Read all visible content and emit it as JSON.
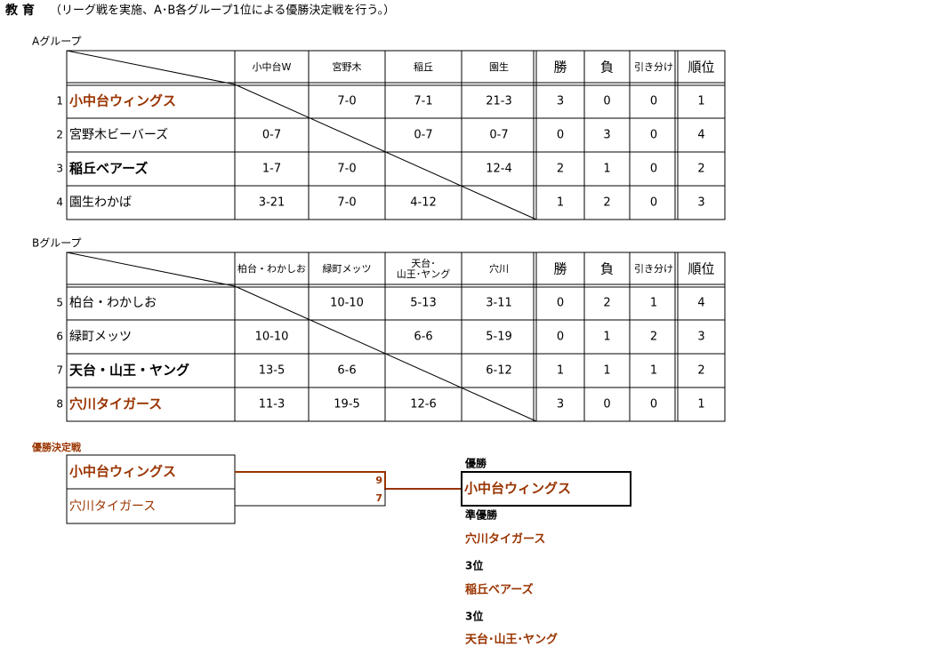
{
  "header": {
    "title": "教 育",
    "note": "（リーグ戦を実施、A･B各グループ1位による優勝決定戦を行う。）"
  },
  "groups": [
    {
      "label": "Aグループ",
      "columns": [
        [
          "小中台W"
        ],
        [
          "宮野木"
        ],
        [
          "稲丘"
        ],
        [
          "園生"
        ],
        [
          "勝"
        ],
        [
          "負"
        ],
        [
          "引き分け"
        ],
        [
          "順位"
        ]
      ],
      "rows": [
        {
          "no": 1,
          "team": "小中台ウィングス",
          "bold": true,
          "color": "#993300",
          "cells": [
            null,
            "7-0",
            "7-1",
            "21-3",
            3,
            0,
            0,
            1
          ]
        },
        {
          "no": 2,
          "team": "宮野木ビーバーズ",
          "bold": false,
          "color": "#000000",
          "cells": [
            "0-7",
            null,
            "0-7",
            "0-7",
            0,
            3,
            0,
            4
          ]
        },
        {
          "no": 3,
          "team": "稲丘ベアーズ",
          "bold": true,
          "color": "#000000",
          "cells": [
            "1-7",
            "7-0",
            null,
            "12-4",
            2,
            1,
            0,
            2
          ]
        },
        {
          "no": 4,
          "team": "園生わかば",
          "bold": false,
          "color": "#000000",
          "cells": [
            "3-21",
            "7-0",
            "4-12",
            null,
            1,
            2,
            0,
            3
          ]
        }
      ]
    },
    {
      "label": "Bグループ",
      "columns": [
        [
          "柏台・わかしお"
        ],
        [
          "緑町メッツ"
        ],
        [
          "天台･",
          "山王･ヤング"
        ],
        [
          "穴川"
        ],
        [
          "勝"
        ],
        [
          "負"
        ],
        [
          "引き分け"
        ],
        [
          "順位"
        ]
      ],
      "rows": [
        {
          "no": 5,
          "team": "柏台・わかしお",
          "bold": false,
          "color": "#000000",
          "cells": [
            null,
            "10-10",
            "5-13",
            "3-11",
            0,
            2,
            1,
            4
          ]
        },
        {
          "no": 6,
          "team": "緑町メッツ",
          "bold": false,
          "color": "#000000",
          "cells": [
            "10-10",
            null,
            "6-6",
            "5-19",
            0,
            1,
            2,
            3
          ]
        },
        {
          "no": 7,
          "team": "天台・山王・ヤング",
          "bold": true,
          "color": "#000000",
          "cells": [
            "13-5",
            "6-6",
            null,
            "6-12",
            1,
            1,
            1,
            2
          ]
        },
        {
          "no": 8,
          "team": "穴川タイガース",
          "bold": true,
          "color": "#993300",
          "cells": [
            "11-3",
            "19-5",
            "12-6",
            null,
            3,
            0,
            0,
            1
          ]
        }
      ]
    }
  ],
  "final": {
    "title": "優勝決定戦",
    "teams": [
      {
        "name": "小中台ウィングス",
        "score": 9
      },
      {
        "name": "穴川タイガース",
        "score": 7
      }
    ]
  },
  "results": [
    {
      "label": "優勝",
      "team": "小中台ウィングス"
    },
    {
      "label": "準優勝",
      "team": "穴川タイガース"
    },
    {
      "label": "3位",
      "team": "稲丘ベアーズ"
    },
    {
      "label": "3位",
      "team": "天台･山王･ヤング"
    }
  ]
}
